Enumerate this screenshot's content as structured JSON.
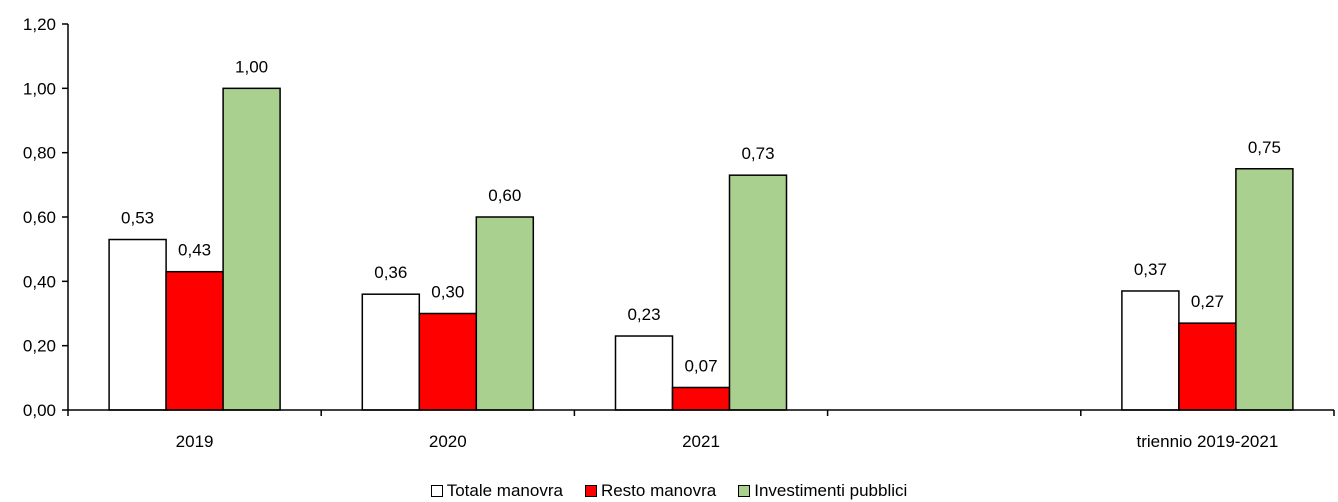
{
  "chart_data": {
    "type": "bar",
    "categories": [
      "2019",
      "2020",
      "2021",
      "",
      "triennio 2019-2021"
    ],
    "series": [
      {
        "name": "Totale manovra",
        "color": "#ffffff",
        "values": [
          0.53,
          0.36,
          0.23,
          null,
          0.37
        ],
        "labels": [
          "0,53",
          "0,36",
          "0,23",
          "",
          "0,37"
        ]
      },
      {
        "name": "Resto manovra",
        "color": "#ff0000",
        "values": [
          0.43,
          0.3,
          0.07,
          null,
          0.27
        ],
        "labels": [
          "0,43",
          "0,30",
          "0,07",
          "",
          "0,27"
        ]
      },
      {
        "name": "Investimenti pubblici",
        "color": "#a9d08e",
        "values": [
          1.0,
          0.6,
          0.73,
          null,
          0.75
        ],
        "labels": [
          "1,00",
          "0,60",
          "0,73",
          "",
          "0,75"
        ]
      }
    ],
    "ylim": [
      0,
      1.2
    ],
    "yticks": [
      "0,00",
      "0,20",
      "0,40",
      "0,60",
      "0,80",
      "1,00",
      "1,20"
    ],
    "grid": false,
    "legend_position": "bottom"
  }
}
